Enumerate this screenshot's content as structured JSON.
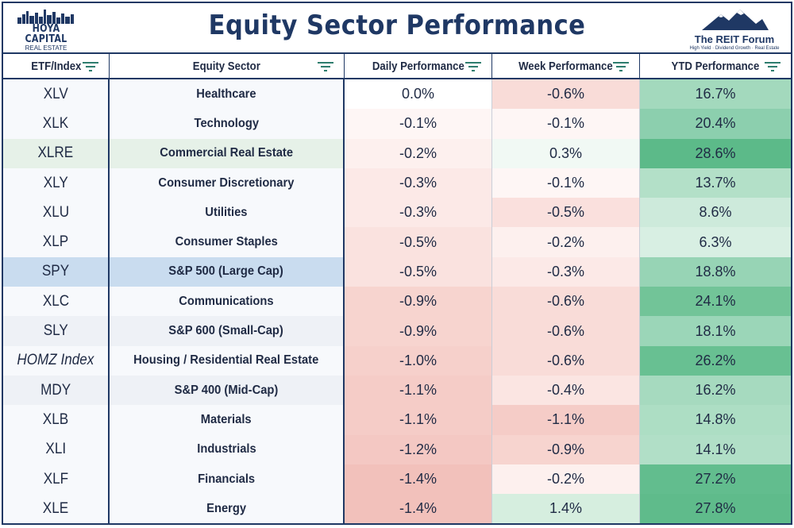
{
  "header": {
    "title": "Equity Sector Performance",
    "logo_left_line1": "HOYA CAPITAL",
    "logo_left_line2": "REAL ESTATE",
    "logo_right_line1": "The REIT Forum",
    "logo_right_line2": "High Yield · Dividend Growth · Real Estate"
  },
  "columns": [
    "ETF/Index",
    "Equity Sector",
    "Daily Performance",
    "Week Performance",
    "YTD Performance"
  ],
  "colors": {
    "navy": "#1f3864",
    "ticker_bg_default": "#f7f9fc",
    "ticker_bg_highlight_green": "#e6f1e8",
    "ticker_bg_highlight_blue": "#c9dcef",
    "ticker_bg_alt": "#eef1f6"
  },
  "rows": [
    {
      "ticker": "XLV",
      "italic": false,
      "sector": "Healthcare",
      "daily": "0.0%",
      "week": "-0.6%",
      "ytd": "16.7%",
      "hl": "none",
      "daily_bg": "#ffffff",
      "week_bg": "#f9dcd8",
      "ytd_bg": "#a3d9bd"
    },
    {
      "ticker": "XLK",
      "italic": false,
      "sector": "Technology",
      "daily": "-0.1%",
      "week": "-0.1%",
      "ytd": "20.4%",
      "hl": "none",
      "daily_bg": "#fef6f5",
      "week_bg": "#fef6f5",
      "ytd_bg": "#8ccfae"
    },
    {
      "ticker": "XLRE",
      "italic": false,
      "sector": "Commercial Real Estate",
      "daily": "-0.2%",
      "week": "0.3%",
      "ytd": "28.6%",
      "hl": "green",
      "daily_bg": "#fdf0ee",
      "week_bg": "#f1f9f4",
      "ytd_bg": "#5cba89"
    },
    {
      "ticker": "XLY",
      "italic": false,
      "sector": "Consumer Discretionary",
      "daily": "-0.3%",
      "week": "-0.1%",
      "ytd": "13.7%",
      "hl": "none",
      "daily_bg": "#fce9e7",
      "week_bg": "#fef6f5",
      "ytd_bg": "#b3e0c8"
    },
    {
      "ticker": "XLU",
      "italic": false,
      "sector": "Utilities",
      "daily": "-0.3%",
      "week": "-0.5%",
      "ytd": "8.6%",
      "hl": "none",
      "daily_bg": "#fce9e7",
      "week_bg": "#fae0dd",
      "ytd_bg": "#cdeadb"
    },
    {
      "ticker": "XLP",
      "italic": false,
      "sector": "Consumer Staples",
      "daily": "-0.5%",
      "week": "-0.2%",
      "ytd": "6.3%",
      "hl": "none",
      "daily_bg": "#fae2df",
      "week_bg": "#fdf0ee",
      "ytd_bg": "#d8efe3"
    },
    {
      "ticker": "SPY",
      "italic": false,
      "sector": "S&P 500 (Large Cap)",
      "daily": "-0.5%",
      "week": "-0.3%",
      "ytd": "18.8%",
      "hl": "blue",
      "daily_bg": "#fae2df",
      "week_bg": "#fce9e7",
      "ytd_bg": "#97d4b5"
    },
    {
      "ticker": "XLC",
      "italic": false,
      "sector": "Communications",
      "daily": "-0.9%",
      "week": "-0.6%",
      "ytd": "24.1%",
      "hl": "none",
      "daily_bg": "#f7d4cf",
      "week_bg": "#f9dcd8",
      "ytd_bg": "#72c498"
    },
    {
      "ticker": "SLY",
      "italic": false,
      "sector": "S&P 600 (Small-Cap)",
      "daily": "-0.9%",
      "week": "-0.6%",
      "ytd": "18.1%",
      "hl": "alt",
      "daily_bg": "#f7d4cf",
      "week_bg": "#f9dcd8",
      "ytd_bg": "#9bd6b8"
    },
    {
      "ticker": "HOMZ Index",
      "italic": true,
      "sector": "Housing / Residential Real Estate",
      "daily": "-1.0%",
      "week": "-0.6%",
      "ytd": "26.2%",
      "hl": "none",
      "daily_bg": "#f6d0cb",
      "week_bg": "#f9dcd8",
      "ytd_bg": "#68c092"
    },
    {
      "ticker": "MDY",
      "italic": false,
      "sector": "S&P 400 (Mid-Cap)",
      "daily": "-1.1%",
      "week": "-0.4%",
      "ytd": "16.2%",
      "hl": "alt",
      "daily_bg": "#f5ccc7",
      "week_bg": "#fbe5e2",
      "ytd_bg": "#a6dabf"
    },
    {
      "ticker": "XLB",
      "italic": false,
      "sector": "Materials",
      "daily": "-1.1%",
      "week": "-1.1%",
      "ytd": "14.8%",
      "hl": "none",
      "daily_bg": "#f5ccc7",
      "week_bg": "#f5ccc7",
      "ytd_bg": "#addec4"
    },
    {
      "ticker": "XLI",
      "italic": false,
      "sector": "Industrials",
      "daily": "-1.2%",
      "week": "-0.9%",
      "ytd": "14.1%",
      "hl": "none",
      "daily_bg": "#f4c8c3",
      "week_bg": "#f7d4cf",
      "ytd_bg": "#b1dfc7"
    },
    {
      "ticker": "XLF",
      "italic": false,
      "sector": "Financials",
      "daily": "-1.4%",
      "week": "-0.2%",
      "ytd": "27.2%",
      "hl": "none",
      "daily_bg": "#f2c1bb",
      "week_bg": "#fdf0ee",
      "ytd_bg": "#62bd8e"
    },
    {
      "ticker": "XLE",
      "italic": false,
      "sector": "Energy",
      "daily": "-1.4%",
      "week": "1.4%",
      "ytd": "27.8%",
      "hl": "none",
      "daily_bg": "#f2c1bb",
      "week_bg": "#d6eedf",
      "ytd_bg": "#5fbb8b"
    }
  ]
}
